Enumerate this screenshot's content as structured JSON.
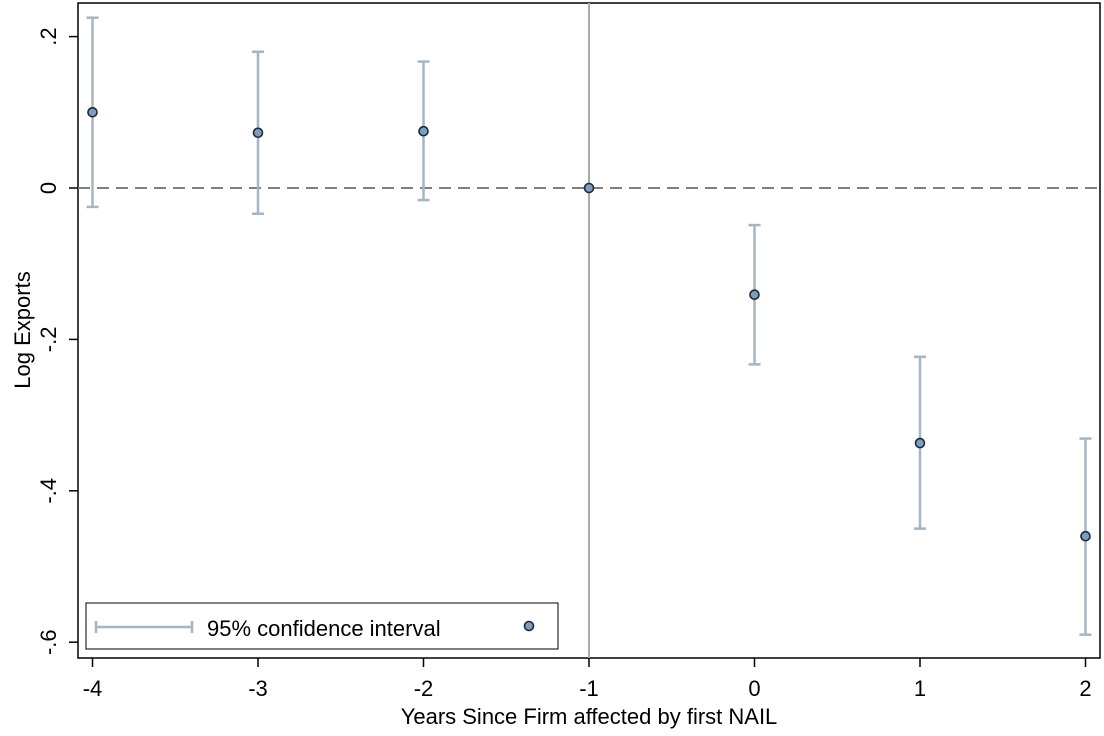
{
  "chart_data": {
    "type": "scatter",
    "xlabel": "Years Since Firm affected by first NAIL",
    "ylabel": "Log Exports",
    "x_ticks": [
      -4,
      -3,
      -2,
      -1,
      0,
      1,
      2
    ],
    "x_tick_labels": [
      "-4",
      "-3",
      "-2",
      "-1",
      "0",
      "1",
      "2"
    ],
    "y_ticks": [
      -0.6,
      -0.4,
      -0.2,
      0,
      0.2
    ],
    "y_tick_labels": [
      "-.6",
      "-.4",
      "-.2",
      "0",
      ".2"
    ],
    "xlim": [
      -4.07,
      2.1
    ],
    "ylim": [
      -0.62,
      0.245
    ],
    "grid": false,
    "reference_lines": {
      "horizontal_y": 0,
      "horizontal_style": "dashed",
      "vertical_x": -1
    },
    "series": [
      {
        "type": "errorbar",
        "points": [
          {
            "x": -4,
            "y": 0.1,
            "lo": -0.025,
            "hi": 0.225
          },
          {
            "x": -3,
            "y": 0.073,
            "lo": -0.034,
            "hi": 0.18
          },
          {
            "x": -2,
            "y": 0.075,
            "lo": -0.016,
            "hi": 0.167
          },
          {
            "x": -1,
            "y": 0.0,
            "lo": 0.0,
            "hi": 0.0
          },
          {
            "x": 0,
            "y": -0.141,
            "lo": -0.233,
            "hi": -0.049
          },
          {
            "x": 1,
            "y": -0.337,
            "lo": -0.45,
            "hi": -0.223
          },
          {
            "x": 2,
            "y": -0.46,
            "lo": -0.59,
            "hi": -0.331
          }
        ]
      }
    ],
    "legend": {
      "placement": "bottom-left",
      "entries": [
        {
          "label": "95% confidence interval",
          "symbol": "errorbar"
        },
        {
          "label": "",
          "symbol": "marker"
        }
      ]
    },
    "colors": {
      "ci": "#a5b5c1",
      "marker_fill": "#7f9ebb",
      "marker_edge": "#1b2a3e",
      "zero_line": "#808080",
      "vline": "#a9a9a9"
    }
  }
}
